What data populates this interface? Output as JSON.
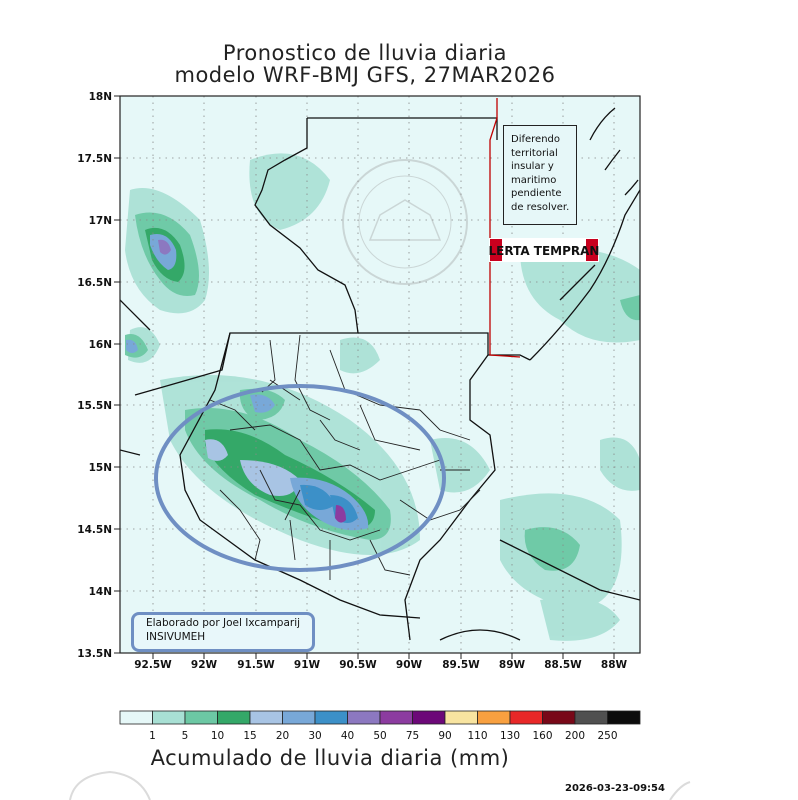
{
  "title_line1": "Pronostico de lluvia diaria",
  "title_line2": "modelo WRF-BMJ GFS,  27MAR2026",
  "y_ticks": [
    "18N",
    "17.5N",
    "17N",
    "16.5N",
    "16N",
    "15.5N",
    "15N",
    "14.5N",
    "14N",
    "13.5N"
  ],
  "x_ticks": [
    "92.5W",
    "92W",
    "91.5W",
    "91W",
    "90.5W",
    "90W",
    "89.5W",
    "89W",
    "88.5W",
    "88W"
  ],
  "legend": {
    "title": "Acumulado de lluvia diaria (mm)",
    "labels": [
      "1",
      "5",
      "10",
      "15",
      "20",
      "30",
      "40",
      "50",
      "75",
      "90",
      "110",
      "130",
      "160",
      "200",
      "250"
    ],
    "colors": [
      "#e6f8f8",
      "#a8e0d4",
      "#6cc8a4",
      "#34a868",
      "#a8c4e4",
      "#78a8d8",
      "#3c90c8",
      "#8c78c0",
      "#8c3ca0",
      "#6c0878",
      "#f8e4a0",
      "#f8a040",
      "#e82828",
      "#780818",
      "#505050",
      "#0c0c0c"
    ]
  },
  "note_text": "Diferendo\nterritorial\ninsular y\nmaritimo\npendiente\nde resolver.",
  "alert_label": "ALERTA TEMPRANA",
  "credit_line1": "Elaborado  por Joel Ixcamparij",
  "credit_line2": "INSIVUMEH",
  "watermark_text": "INSIVUMEH",
  "timestamp": "2026-03-23-09:54",
  "colors": {
    "frame": "#222222",
    "highlight_ellipse": "#6f8fc3",
    "border_line": "#111111",
    "red_line": "#c00000"
  }
}
